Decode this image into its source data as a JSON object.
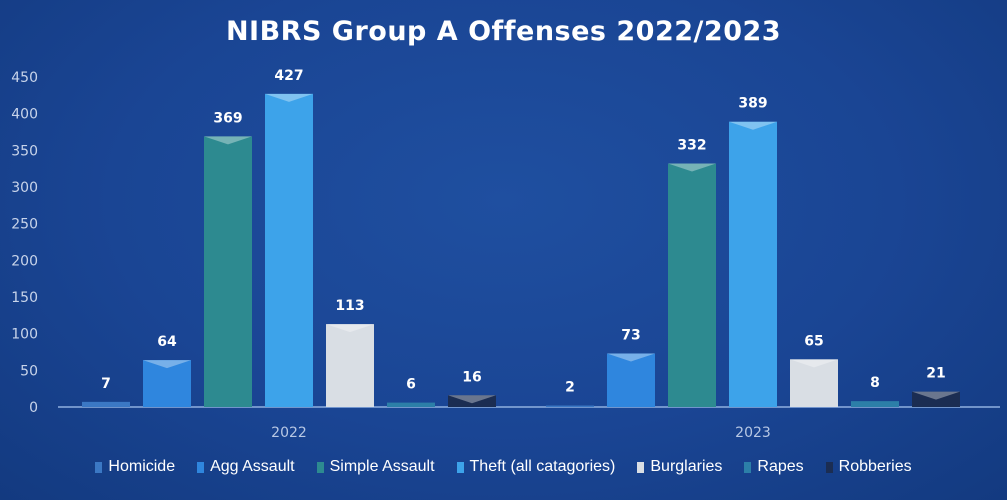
{
  "chart_data": {
    "type": "bar",
    "title": "NIBRS Group A Offenses 2022/2023",
    "categories": [
      "2022",
      "2023"
    ],
    "series": [
      {
        "name": "Homicide",
        "values": [
          7,
          2
        ],
        "color": "#3b78c4"
      },
      {
        "name": "Agg Assault",
        "values": [
          64,
          73
        ],
        "color": "#2f86de"
      },
      {
        "name": "Simple Assault",
        "values": [
          369,
          332
        ],
        "color": "#2d8a90"
      },
      {
        "name": "Theft (all catagories)",
        "values": [
          427,
          389
        ],
        "color": "#3da3ea"
      },
      {
        "name": "Burglaries",
        "values": [
          113,
          65
        ],
        "color": "#d9dee4"
      },
      {
        "name": "Rapes",
        "values": [
          6,
          8
        ],
        "color": "#2c7fa8"
      },
      {
        "name": "Robberies",
        "values": [
          16,
          21
        ],
        "color": "#1b2d52"
      }
    ],
    "ylim": [
      0,
      450
    ],
    "yticks": [
      0,
      50,
      100,
      150,
      200,
      250,
      300,
      350,
      400,
      450
    ],
    "grid": false,
    "legend": "bottom",
    "data_labels": true
  }
}
